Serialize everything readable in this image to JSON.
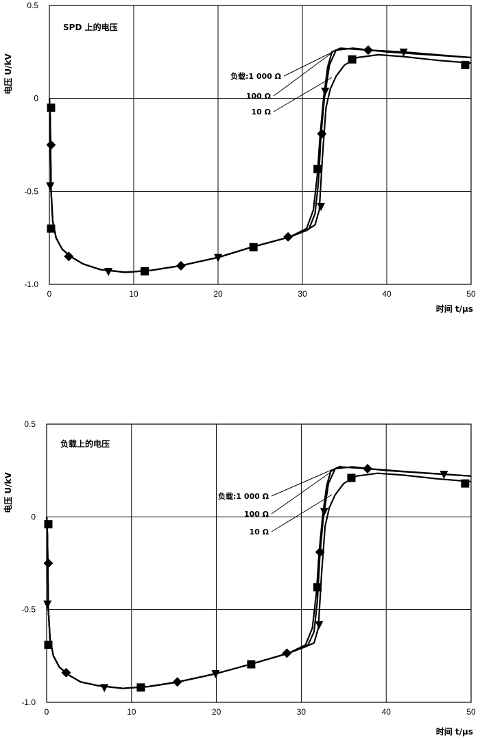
{
  "chart_data": [
    {
      "type": "line",
      "title": "SPD 上的电压",
      "xlabel": "时间 t/μs",
      "ylabel": "电压 U/kV",
      "xlim": [
        0,
        50
      ],
      "ylim": [
        -1.0,
        0.5
      ],
      "x_ticks": [
        "0",
        "10",
        "20",
        "30",
        "40",
        "50"
      ],
      "y_ticks": [
        "0.5",
        "0",
        "-0.5",
        "-1.0"
      ],
      "grid": true,
      "legend_labels": [
        "负载:1 000 Ω",
        "100 Ω",
        "10 Ω"
      ],
      "series": [
        {
          "name": "负载:1 000 Ω",
          "marker": "diamond",
          "points": [
            [
              0.0,
              0.0
            ],
            [
              0.1,
              -0.1
            ],
            [
              0.2,
              -0.5
            ],
            [
              0.4,
              -0.66
            ],
            [
              0.8,
              -0.75
            ],
            [
              1.5,
              -0.81
            ],
            [
              2.5,
              -0.85
            ],
            [
              4,
              -0.89
            ],
            [
              6,
              -0.92
            ],
            [
              9,
              -0.935
            ],
            [
              12,
              -0.925
            ],
            [
              15.5,
              -0.9
            ],
            [
              20,
              -0.855
            ],
            [
              24,
              -0.8
            ],
            [
              28.5,
              -0.745
            ],
            [
              30.5,
              -0.7
            ],
            [
              31.3,
              -0.6
            ],
            [
              31.8,
              -0.4
            ],
            [
              32.1,
              -0.2
            ],
            [
              32.5,
              0.0
            ],
            [
              33.0,
              0.17
            ],
            [
              33.5,
              0.25
            ],
            [
              34.5,
              0.27
            ],
            [
              37.8,
              0.26
            ],
            [
              42,
              0.25
            ],
            [
              50,
              0.22
            ]
          ],
          "marker_points": [
            [
              0.2,
              -0.25
            ],
            [
              2.3,
              -0.85
            ],
            [
              15.6,
              -0.9
            ],
            [
              28.3,
              -0.745
            ],
            [
              32.3,
              -0.19
            ],
            [
              37.8,
              0.26
            ]
          ]
        },
        {
          "name": "100 Ω",
          "marker": "square",
          "points": [
            [
              0.0,
              0.0
            ],
            [
              0.1,
              -0.1
            ],
            [
              0.2,
              -0.5
            ],
            [
              0.4,
              -0.66
            ],
            [
              0.8,
              -0.75
            ],
            [
              1.5,
              -0.81
            ],
            [
              2.5,
              -0.85
            ],
            [
              4,
              -0.89
            ],
            [
              6,
              -0.92
            ],
            [
              9,
              -0.935
            ],
            [
              12,
              -0.925
            ],
            [
              15.5,
              -0.9
            ],
            [
              20,
              -0.855
            ],
            [
              24,
              -0.8
            ],
            [
              28.5,
              -0.745
            ],
            [
              30.8,
              -0.7
            ],
            [
              31.5,
              -0.62
            ],
            [
              31.9,
              -0.45
            ],
            [
              32.2,
              -0.2
            ],
            [
              32.6,
              0.0
            ],
            [
              33.2,
              0.18
            ],
            [
              34.0,
              0.26
            ],
            [
              36,
              0.27
            ],
            [
              40,
              0.25
            ],
            [
              50,
              0.22
            ]
          ],
          "marker_points": [
            [
              0.2,
              -0.05
            ],
            [
              0.2,
              -0.7
            ],
            [
              11.3,
              -0.93
            ],
            [
              24.2,
              -0.8
            ],
            [
              31.8,
              -0.38
            ],
            [
              35.9,
              0.21
            ],
            [
              49.3,
              0.18
            ]
          ]
        },
        {
          "name": "10 Ω",
          "marker": "triangle-down",
          "points": [
            [
              0.0,
              0.0
            ],
            [
              0.1,
              -0.1
            ],
            [
              0.2,
              -0.5
            ],
            [
              0.4,
              -0.66
            ],
            [
              0.8,
              -0.75
            ],
            [
              1.5,
              -0.81
            ],
            [
              2.5,
              -0.85
            ],
            [
              4,
              -0.89
            ],
            [
              6,
              -0.92
            ],
            [
              9,
              -0.935
            ],
            [
              12,
              -0.925
            ],
            [
              15.5,
              -0.9
            ],
            [
              20,
              -0.855
            ],
            [
              24,
              -0.8
            ],
            [
              28.5,
              -0.745
            ],
            [
              30.5,
              -0.71
            ],
            [
              31.5,
              -0.68
            ],
            [
              32.0,
              -0.6
            ],
            [
              32.4,
              -0.3
            ],
            [
              32.8,
              -0.05
            ],
            [
              33.3,
              0.05
            ],
            [
              34,
              0.12
            ],
            [
              35,
              0.18
            ],
            [
              36.5,
              0.22
            ],
            [
              39,
              0.235
            ],
            [
              42,
              0.225
            ],
            [
              46,
              0.205
            ],
            [
              50,
              0.19
            ]
          ],
          "marker_points": [
            [
              0.1,
              -0.47
            ],
            [
              7,
              -0.93
            ],
            [
              20,
              -0.855
            ],
            [
              32.2,
              -0.58
            ],
            [
              32.7,
              0.04
            ],
            [
              42,
              0.25
            ]
          ]
        }
      ]
    },
    {
      "type": "line",
      "title": "负载上的电压",
      "xlabel": "时间 t/μs",
      "ylabel": "电压 U/kV",
      "xlim": [
        0,
        50
      ],
      "ylim": [
        -1.0,
        0.5
      ],
      "x_ticks": [
        "0",
        "10",
        "20",
        "30",
        "40",
        "50"
      ],
      "y_ticks": [
        "0.5",
        "0",
        "-0.5",
        "-1.0"
      ],
      "grid": true,
      "legend_labels": [
        "负载:1 000 Ω",
        "100 Ω",
        "10 Ω"
      ],
      "series": [
        {
          "name": "负载:1 000 Ω",
          "marker": "diamond",
          "points": [
            [
              0.0,
              0.0
            ],
            [
              0.1,
              -0.1
            ],
            [
              0.2,
              -0.5
            ],
            [
              0.4,
              -0.66
            ],
            [
              0.8,
              -0.75
            ],
            [
              1.5,
              -0.81
            ],
            [
              2.5,
              -0.85
            ],
            [
              4,
              -0.89
            ],
            [
              6,
              -0.91
            ],
            [
              9,
              -0.925
            ],
            [
              12,
              -0.915
            ],
            [
              15.5,
              -0.89
            ],
            [
              20,
              -0.845
            ],
            [
              24,
              -0.795
            ],
            [
              28.5,
              -0.735
            ],
            [
              30.5,
              -0.69
            ],
            [
              31.3,
              -0.6
            ],
            [
              31.8,
              -0.4
            ],
            [
              32.1,
              -0.19
            ],
            [
              32.5,
              0.0
            ],
            [
              33.0,
              0.17
            ],
            [
              33.5,
              0.25
            ],
            [
              34.5,
              0.27
            ],
            [
              37.8,
              0.26
            ],
            [
              42,
              0.245
            ],
            [
              50,
              0.22
            ]
          ],
          "marker_points": [
            [
              0.2,
              -0.25
            ],
            [
              2.3,
              -0.84
            ],
            [
              15.4,
              -0.89
            ],
            [
              28.3,
              -0.735
            ],
            [
              32.2,
              -0.19
            ],
            [
              37.8,
              0.26
            ]
          ]
        },
        {
          "name": "100 Ω",
          "marker": "square",
          "points": [
            [
              0.0,
              0.0
            ],
            [
              0.1,
              -0.1
            ],
            [
              0.2,
              -0.5
            ],
            [
              0.4,
              -0.66
            ],
            [
              0.8,
              -0.75
            ],
            [
              1.5,
              -0.81
            ],
            [
              2.5,
              -0.85
            ],
            [
              4,
              -0.89
            ],
            [
              6,
              -0.91
            ],
            [
              9,
              -0.925
            ],
            [
              12,
              -0.915
            ],
            [
              15.5,
              -0.89
            ],
            [
              20,
              -0.845
            ],
            [
              24,
              -0.795
            ],
            [
              28.5,
              -0.735
            ],
            [
              30.8,
              -0.69
            ],
            [
              31.5,
              -0.62
            ],
            [
              31.9,
              -0.45
            ],
            [
              32.2,
              -0.2
            ],
            [
              32.6,
              0.0
            ],
            [
              33.2,
              0.18
            ],
            [
              34.0,
              0.26
            ],
            [
              36,
              0.27
            ],
            [
              40,
              0.25
            ],
            [
              50,
              0.22
            ]
          ],
          "marker_points": [
            [
              0.2,
              -0.04
            ],
            [
              0.2,
              -0.69
            ],
            [
              11.1,
              -0.92
            ],
            [
              24.1,
              -0.795
            ],
            [
              31.9,
              -0.38
            ],
            [
              35.9,
              0.21
            ],
            [
              49.3,
              0.18
            ]
          ]
        },
        {
          "name": "10 Ω",
          "marker": "triangle-down",
          "points": [
            [
              0.0,
              0.0
            ],
            [
              0.1,
              -0.1
            ],
            [
              0.2,
              -0.5
            ],
            [
              0.4,
              -0.66
            ],
            [
              0.8,
              -0.75
            ],
            [
              1.5,
              -0.81
            ],
            [
              2.5,
              -0.85
            ],
            [
              4,
              -0.89
            ],
            [
              6,
              -0.91
            ],
            [
              9,
              -0.925
            ],
            [
              12,
              -0.915
            ],
            [
              15.5,
              -0.89
            ],
            [
              20,
              -0.845
            ],
            [
              24,
              -0.795
            ],
            [
              28.5,
              -0.735
            ],
            [
              30.5,
              -0.7
            ],
            [
              31.5,
              -0.68
            ],
            [
              32.0,
              -0.6
            ],
            [
              32.4,
              -0.3
            ],
            [
              32.8,
              -0.05
            ],
            [
              33.3,
              0.05
            ],
            [
              34,
              0.12
            ],
            [
              35,
              0.18
            ],
            [
              36.5,
              0.22
            ],
            [
              39,
              0.235
            ],
            [
              42,
              0.225
            ],
            [
              46,
              0.205
            ],
            [
              50,
              0.19
            ]
          ],
          "marker_points": [
            [
              0.1,
              -0.47
            ],
            [
              6.8,
              -0.92
            ],
            [
              19.9,
              -0.845
            ],
            [
              32.1,
              -0.58
            ],
            [
              32.7,
              0.03
            ],
            [
              46.8,
              0.23
            ]
          ]
        }
      ]
    }
  ]
}
